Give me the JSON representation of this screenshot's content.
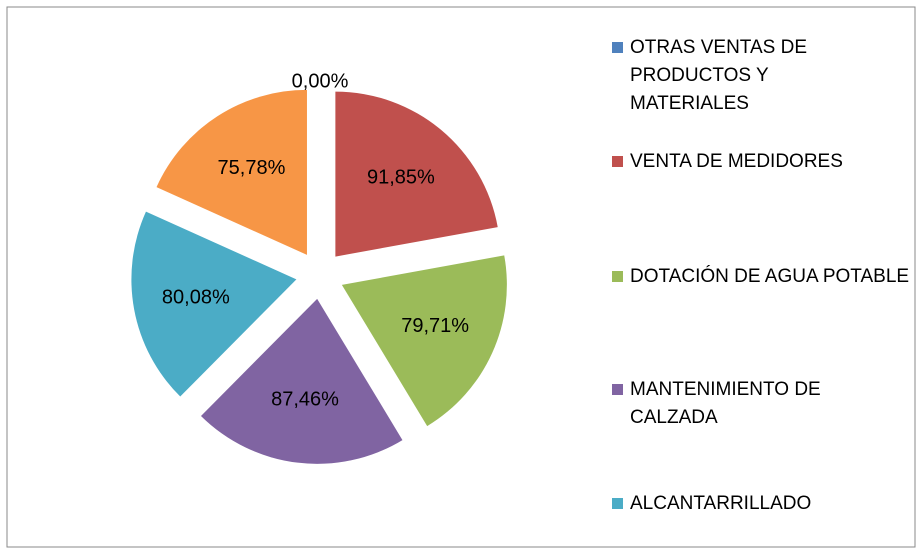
{
  "chart_data": {
    "type": "pie",
    "categories": [
      "OTRAS VENTAS DE PRODUCTOS Y MATERIALES",
      "VENTA DE MEDIDORES",
      "DOTACIÓN DE AGUA POTABLE",
      "MANTENIMIENTO DE CALZADA",
      "ALCANTARRILLADO",
      null
    ],
    "values": [
      0,
      91.85,
      79.71,
      87.46,
      80.08,
      75.78
    ],
    "value_labels": [
      "0,00%",
      "91,85%",
      "79,71%",
      "87,46%",
      "80,08%",
      "75,78%"
    ],
    "colors": [
      "#4f81bd",
      "#c0504d",
      "#9bbb59",
      "#8064a2",
      "#4bacc6",
      "#f79646"
    ],
    "legend": "right"
  }
}
